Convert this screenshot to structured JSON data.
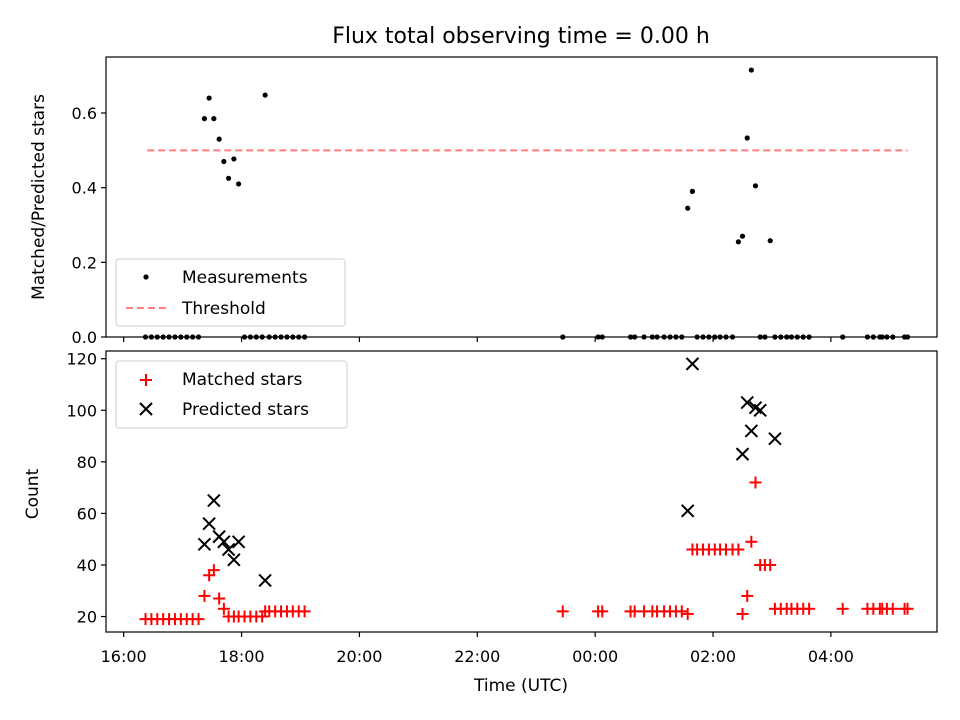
{
  "colors": {
    "measurement": "#000000",
    "threshold": "#ff7f7f",
    "matched": "#ff0000",
    "predicted": "#000000"
  },
  "chart_data": [
    {
      "type": "scatter",
      "panel": "top",
      "title": "Flux total observing time = 0.00 h",
      "ylabel": "Matched/Predicted stars",
      "xlabel": "",
      "xlim_hours": [
        15.7,
        29.8
      ],
      "ylim": [
        0,
        0.75
      ],
      "yticks": [
        0.0,
        0.2,
        0.4,
        0.6
      ],
      "ytick_labels": [
        "0.0",
        "0.2",
        "0.4",
        "0.6"
      ],
      "legend": {
        "placement": "lower-left",
        "entries": [
          "Measurements",
          "Threshold"
        ]
      },
      "threshold": {
        "value": 0.5,
        "x_range_hours": [
          16.4,
          29.3
        ]
      },
      "series": [
        {
          "name": "Measurements",
          "marker": "dot",
          "x_hours": [
            16.37,
            16.47,
            16.57,
            16.67,
            16.77,
            16.87,
            16.97,
            17.07,
            17.17,
            17.27,
            17.37,
            17.45,
            17.53,
            17.62,
            17.7,
            17.78,
            17.87,
            17.95,
            18.05,
            18.15,
            18.25,
            18.35,
            18.4,
            18.47,
            18.57,
            18.67,
            18.77,
            18.87,
            18.97,
            19.07,
            23.45,
            24.05,
            24.12,
            24.6,
            24.67,
            24.83,
            24.97,
            25.05,
            25.17,
            25.27,
            25.37,
            25.47,
            25.57,
            25.65,
            25.73,
            25.83,
            25.93,
            26.03,
            26.12,
            26.22,
            26.33,
            26.43,
            26.5,
            26.58,
            26.65,
            26.72,
            26.8,
            26.88,
            26.97,
            27.05,
            27.15,
            27.25,
            27.33,
            27.43,
            27.53,
            27.63,
            28.2,
            28.62,
            28.72,
            28.83,
            28.87,
            28.95,
            29.05,
            29.25,
            29.3
          ],
          "y": [
            0,
            0,
            0,
            0,
            0,
            0,
            0,
            0,
            0,
            0,
            0.585,
            0.64,
            0.585,
            0.53,
            0.47,
            0.425,
            0.477,
            0.41,
            0,
            0,
            0,
            0,
            0.648,
            0,
            0,
            0,
            0,
            0,
            0,
            0,
            0,
            0,
            0,
            0,
            0,
            0,
            0,
            0,
            0,
            0,
            0,
            0,
            0.345,
            0.39,
            0,
            0,
            0,
            0,
            0,
            0,
            0,
            0.255,
            0.27,
            0.533,
            0.715,
            0.405,
            0,
            0,
            0.258,
            0,
            0,
            0,
            0,
            0,
            0,
            0,
            0,
            0,
            0,
            0,
            0,
            0,
            0,
            0,
            0
          ]
        }
      ]
    },
    {
      "type": "scatter",
      "panel": "bottom",
      "title": "",
      "ylabel": "Count",
      "xlabel": "Time (UTC)",
      "xlim_hours": [
        15.7,
        29.8
      ],
      "ylim": [
        14,
        123
      ],
      "yticks": [
        20,
        40,
        60,
        80,
        100,
        120
      ],
      "ytick_labels": [
        "20",
        "40",
        "60",
        "80",
        "100",
        "120"
      ],
      "xticks_hours": [
        16,
        18,
        20,
        22,
        24,
        26,
        28
      ],
      "xtick_labels": [
        "16:00",
        "18:00",
        "20:00",
        "22:00",
        "00:00",
        "02:00",
        "04:00"
      ],
      "legend": {
        "placement": "top-left",
        "entries": [
          "Matched stars",
          "Predicted stars"
        ]
      },
      "series": [
        {
          "name": "Matched stars",
          "marker": "plus",
          "x_hours": [
            16.37,
            16.47,
            16.57,
            16.67,
            16.77,
            16.87,
            16.97,
            17.07,
            17.17,
            17.27,
            17.37,
            17.45,
            17.53,
            17.62,
            17.7,
            17.78,
            17.87,
            17.95,
            18.05,
            18.15,
            18.25,
            18.35,
            18.4,
            18.47,
            18.57,
            18.67,
            18.77,
            18.87,
            18.97,
            19.07,
            23.45,
            24.05,
            24.12,
            24.6,
            24.67,
            24.83,
            24.97,
            25.05,
            25.17,
            25.27,
            25.37,
            25.47,
            25.57,
            25.65,
            25.73,
            25.83,
            25.93,
            26.03,
            26.12,
            26.22,
            26.33,
            26.43,
            26.5,
            26.58,
            26.65,
            26.72,
            26.8,
            26.88,
            26.97,
            27.05,
            27.15,
            27.25,
            27.33,
            27.43,
            27.53,
            27.63,
            28.2,
            28.62,
            28.72,
            28.83,
            28.87,
            28.95,
            29.05,
            29.25,
            29.3
          ],
          "y": [
            19,
            19,
            19,
            19,
            19,
            19,
            19,
            19,
            19,
            19,
            28,
            36,
            38,
            27,
            23,
            20,
            20,
            20,
            20,
            20,
            20,
            20,
            22,
            22,
            22,
            22,
            22,
            22,
            22,
            22,
            22,
            22,
            22,
            22,
            22,
            22,
            22,
            22,
            22,
            22,
            22,
            22,
            21,
            46,
            46,
            46,
            46,
            46,
            46,
            46,
            46,
            46,
            21,
            28,
            49,
            72,
            40,
            40,
            40,
            23,
            23,
            23,
            23,
            23,
            23,
            23,
            23,
            23,
            23,
            23,
            23,
            23,
            23,
            23,
            23
          ]
        },
        {
          "name": "Predicted stars",
          "marker": "x",
          "x_hours": [
            17.37,
            17.45,
            17.53,
            17.62,
            17.7,
            17.78,
            17.87,
            17.95,
            18.4,
            25.57,
            25.65,
            26.5,
            26.58,
            26.65,
            26.72,
            26.8,
            27.05
          ],
          "y": [
            48,
            56,
            65,
            51,
            49,
            46,
            42,
            49,
            34,
            61,
            118,
            83,
            103,
            92,
            101,
            100,
            89
          ]
        }
      ]
    }
  ]
}
